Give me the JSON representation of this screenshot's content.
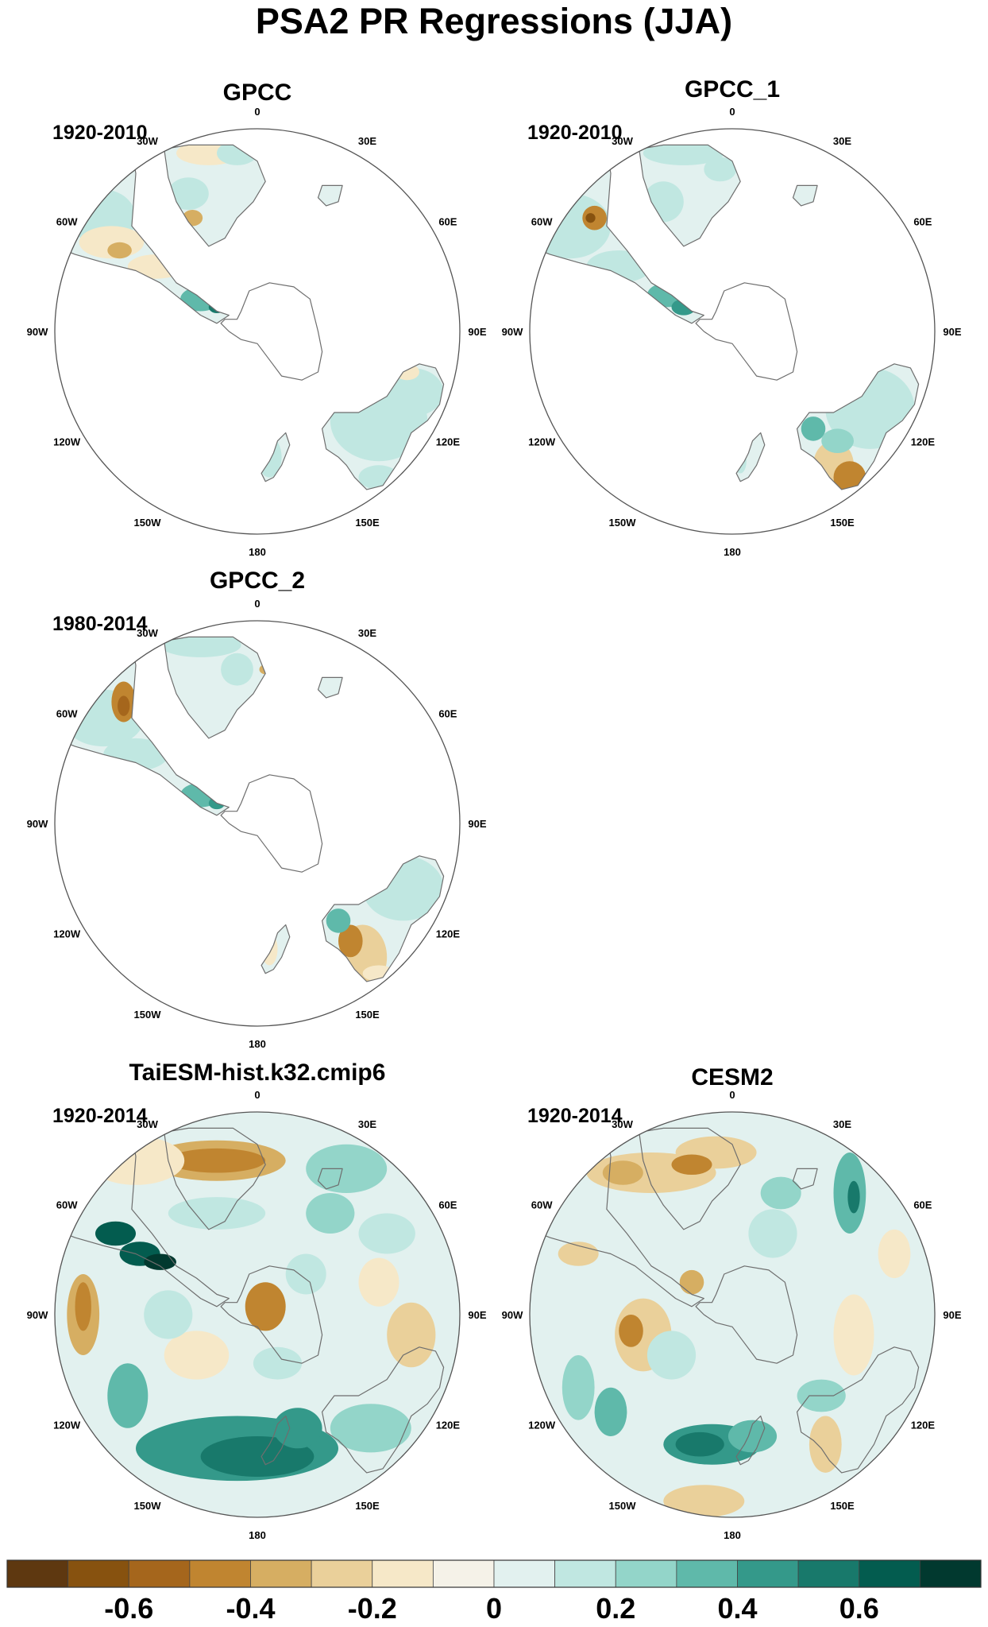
{
  "figure": {
    "title": "PSA2 PR Regressions (JJA)"
  },
  "chart_data": {
    "type": "heatmap",
    "projection": "south-polar-stereographic",
    "longitude_labels": [
      "0",
      "30E",
      "60E",
      "90E",
      "120E",
      "150E",
      "180",
      "150W",
      "120W",
      "90W",
      "60W",
      "30W"
    ],
    "colorbar": {
      "levels": [
        -0.7,
        -0.6,
        -0.5,
        -0.4,
        -0.3,
        -0.2,
        -0.1,
        0,
        0.1,
        0.2,
        0.3,
        0.4,
        0.5,
        0.6,
        0.7
      ],
      "tick_values": [
        -0.6,
        -0.4,
        -0.2,
        0,
        0.2,
        0.4,
        0.6
      ],
      "tick_labels": [
        "-0.6",
        "-0.4",
        "-0.2",
        "0",
        "0.2",
        "0.4",
        "0.6"
      ],
      "colors": [
        "#5e3810",
        "#87520f",
        "#a5661c",
        "#c08530",
        "#d6ae62",
        "#ead09a",
        "#f6e8c8",
        "#f5f2e8",
        "#e2f1ef",
        "#c0e7e1",
        "#93d5c9",
        "#5fb9aa",
        "#34998a",
        "#18796b",
        "#035c4f",
        "#01392f"
      ]
    },
    "panels": [
      {
        "title": "GPCC",
        "period": "1920-2010",
        "coverage": "land-only"
      },
      {
        "title": "GPCC_1",
        "period": "1920-2010",
        "coverage": "land-only"
      },
      {
        "title": "GPCC_2",
        "period": "1980-2014",
        "coverage": "land-only"
      },
      {
        "title": "TaiESM-hist.k32.cmip6",
        "period": "1920-2014",
        "coverage": "full-field"
      },
      {
        "title": "CESM2",
        "period": "1920-2014",
        "coverage": "full-field"
      }
    ]
  }
}
